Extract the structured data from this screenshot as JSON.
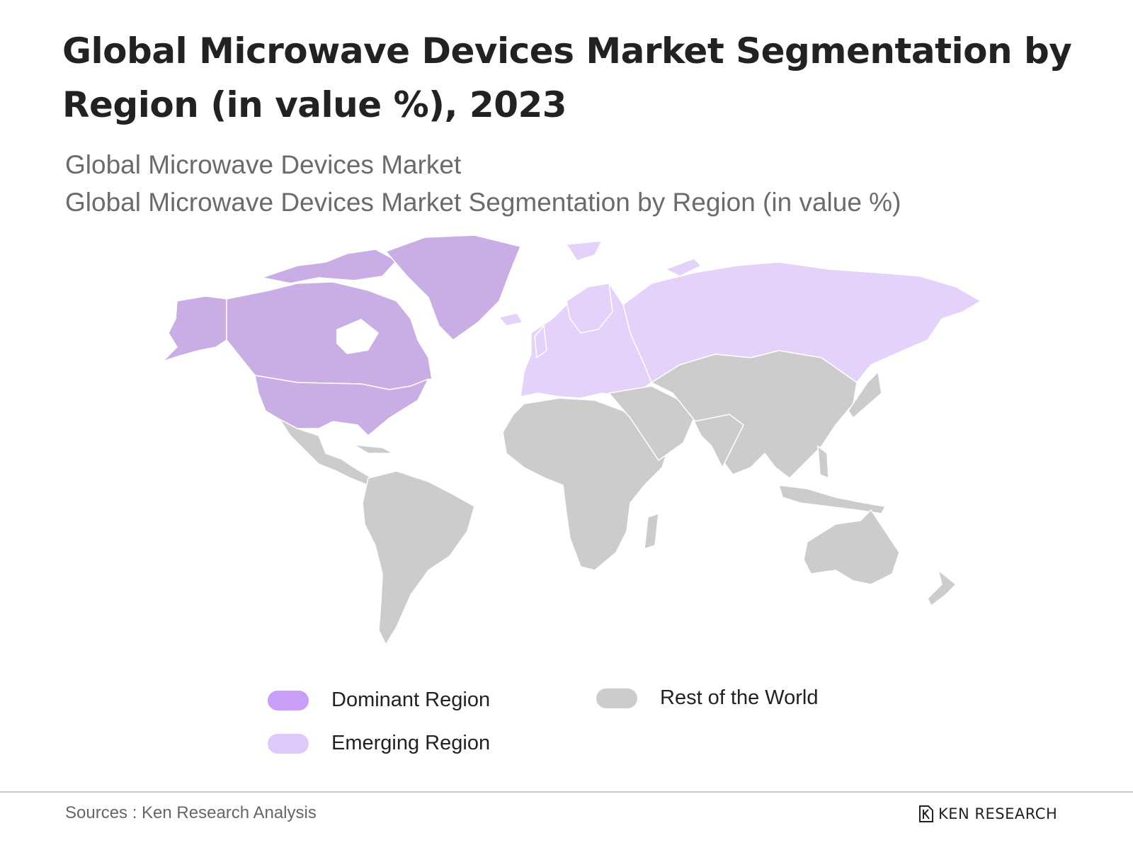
{
  "title": "Global Microwave Devices Market Segmentation by Region (in value %), 2023",
  "subtitle_1": "Global Microwave Devices Market",
  "subtitle_2": "Global Microwave Devices Market Segmentation by Region (in value %)",
  "colors": {
    "dominant": "#c9aee5",
    "emerging": "#e4d2fb",
    "rest": "#cccccc",
    "legend_dominant": "#c89ef8",
    "legend_emerging": "#dfc9fb",
    "legend_rest": "#cccccc"
  },
  "map": {
    "dominant_regions": [
      "North America",
      "Greenland"
    ],
    "emerging_regions": [
      "Europe",
      "Russia"
    ],
    "rest_regions": [
      "Latin America",
      "Africa",
      "Middle East",
      "Asia",
      "Oceania"
    ]
  },
  "legend": {
    "dominant": "Dominant Region",
    "emerging": "Emerging Region",
    "rest": "Rest of the World"
  },
  "source": "Sources : Ken Research Analysis",
  "logo_text": "KEN RESEARCH"
}
